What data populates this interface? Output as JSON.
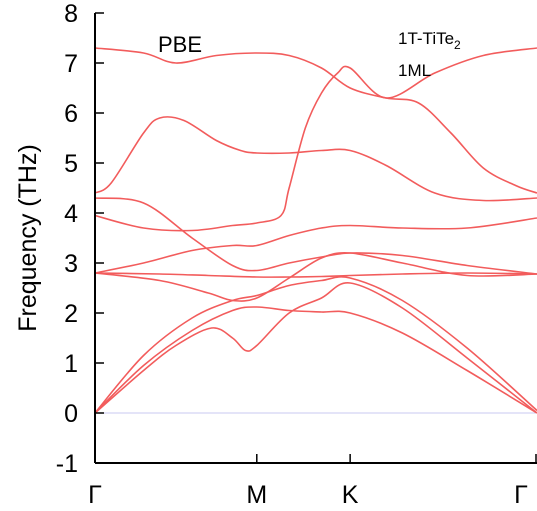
{
  "chart_data": {
    "type": "line",
    "title": "",
    "ylabel": "Frequency (THz)",
    "xlabel": "",
    "ylim": [
      -1,
      8
    ],
    "yticks": [
      "8",
      "7",
      "6",
      "5",
      "4",
      "3",
      "2",
      "1",
      "0",
      "-1"
    ],
    "xticks": [
      {
        "label": "Γ",
        "x": 0
      },
      {
        "label": "M",
        "x": 1
      },
      {
        "label": "K",
        "x": 1.577
      },
      {
        "label": "Γ",
        "x": 2.732
      }
    ],
    "xlim": [
      0,
      2.732
    ],
    "grid": false,
    "annotations": {
      "method": "PBE",
      "material_main": "1T-TiTe",
      "material_sub": "2",
      "layers": "1ML"
    },
    "line_color": "#f25c5c",
    "zero_line_color": "#c8c8f0",
    "series": [
      {
        "x": [
          0,
          0.3,
          0.5,
          0.72,
          0.85,
          0.93,
          1.0,
          1.2,
          1.4,
          1.577,
          1.9,
          2.3,
          2.732
        ],
        "values": [
          0,
          0.85,
          1.35,
          1.7,
          1.5,
          1.25,
          1.35,
          2.0,
          2.3,
          2.6,
          2.1,
          1.1,
          0
        ]
      },
      {
        "x": [
          0,
          0.3,
          0.6,
          0.85,
          1.0,
          1.2,
          1.4,
          1.577,
          1.9,
          2.3,
          2.732
        ],
        "values": [
          0,
          0.95,
          1.65,
          2.05,
          2.12,
          2.05,
          2.02,
          2.0,
          1.6,
          0.85,
          0
        ]
      },
      {
        "x": [
          0,
          0.3,
          0.6,
          0.85,
          1.0,
          1.2,
          1.4,
          1.577,
          1.9,
          2.3,
          2.732
        ],
        "values": [
          0,
          1.15,
          1.9,
          2.25,
          2.35,
          2.55,
          2.65,
          2.7,
          2.25,
          1.3,
          0.05
        ]
      },
      {
        "x": [
          0,
          0.4,
          0.7,
          0.85,
          1.0,
          1.2,
          1.4,
          1.577,
          1.9,
          2.3,
          2.732
        ],
        "values": [
          2.8,
          2.65,
          2.4,
          2.25,
          2.3,
          2.7,
          3.1,
          3.2,
          3.0,
          2.75,
          2.78
        ]
      },
      {
        "x": [
          0,
          0.4,
          0.7,
          1.0,
          1.2,
          1.4,
          1.577,
          1.9,
          2.3,
          2.732
        ],
        "values": [
          2.8,
          2.78,
          2.75,
          2.72,
          2.72,
          2.73,
          2.75,
          2.78,
          2.8,
          2.78
        ]
      },
      {
        "x": [
          0,
          0.3,
          0.6,
          0.85,
          1.0,
          1.2,
          1.4,
          1.577,
          1.9,
          2.3,
          2.732
        ],
        "values": [
          4.3,
          4.2,
          3.5,
          2.95,
          2.85,
          3.0,
          3.12,
          3.2,
          3.15,
          2.95,
          2.78
        ]
      },
      {
        "x": [
          0,
          0.3,
          0.6,
          0.85,
          1.0,
          1.2,
          1.4,
          1.577,
          1.9,
          2.3,
          2.732
        ],
        "values": [
          2.8,
          3.0,
          3.25,
          3.35,
          3.35,
          3.55,
          3.7,
          3.75,
          3.7,
          3.7,
          3.9
        ]
      },
      {
        "x": [
          0,
          0.3,
          0.6,
          0.85,
          1.0,
          1.15,
          1.2,
          1.3,
          1.4,
          1.5,
          1.577,
          1.8,
          2.1,
          2.4,
          2.732
        ],
        "values": [
          3.95,
          3.7,
          3.65,
          3.75,
          3.8,
          3.95,
          4.5,
          5.7,
          6.4,
          6.8,
          6.9,
          6.3,
          6.8,
          7.15,
          7.3
        ]
      },
      {
        "x": [
          0,
          0.1,
          0.3,
          0.4,
          0.55,
          0.75,
          0.9,
          1.0,
          1.2,
          1.4,
          1.577,
          1.8,
          2.1,
          2.4,
          2.732
        ],
        "values": [
          4.4,
          4.6,
          5.6,
          5.9,
          5.85,
          5.45,
          5.25,
          5.2,
          5.2,
          5.25,
          5.25,
          4.95,
          4.4,
          4.25,
          4.3
        ]
      },
      {
        "x": [
          0,
          0.3,
          0.5,
          0.75,
          1.0,
          1.2,
          1.4,
          1.577,
          1.8,
          2.0,
          2.2,
          2.4,
          2.6,
          2.732
        ],
        "values": [
          7.3,
          7.2,
          7.0,
          7.15,
          7.2,
          7.15,
          6.9,
          6.5,
          6.3,
          6.2,
          5.6,
          4.9,
          4.55,
          4.4
        ]
      }
    ]
  }
}
